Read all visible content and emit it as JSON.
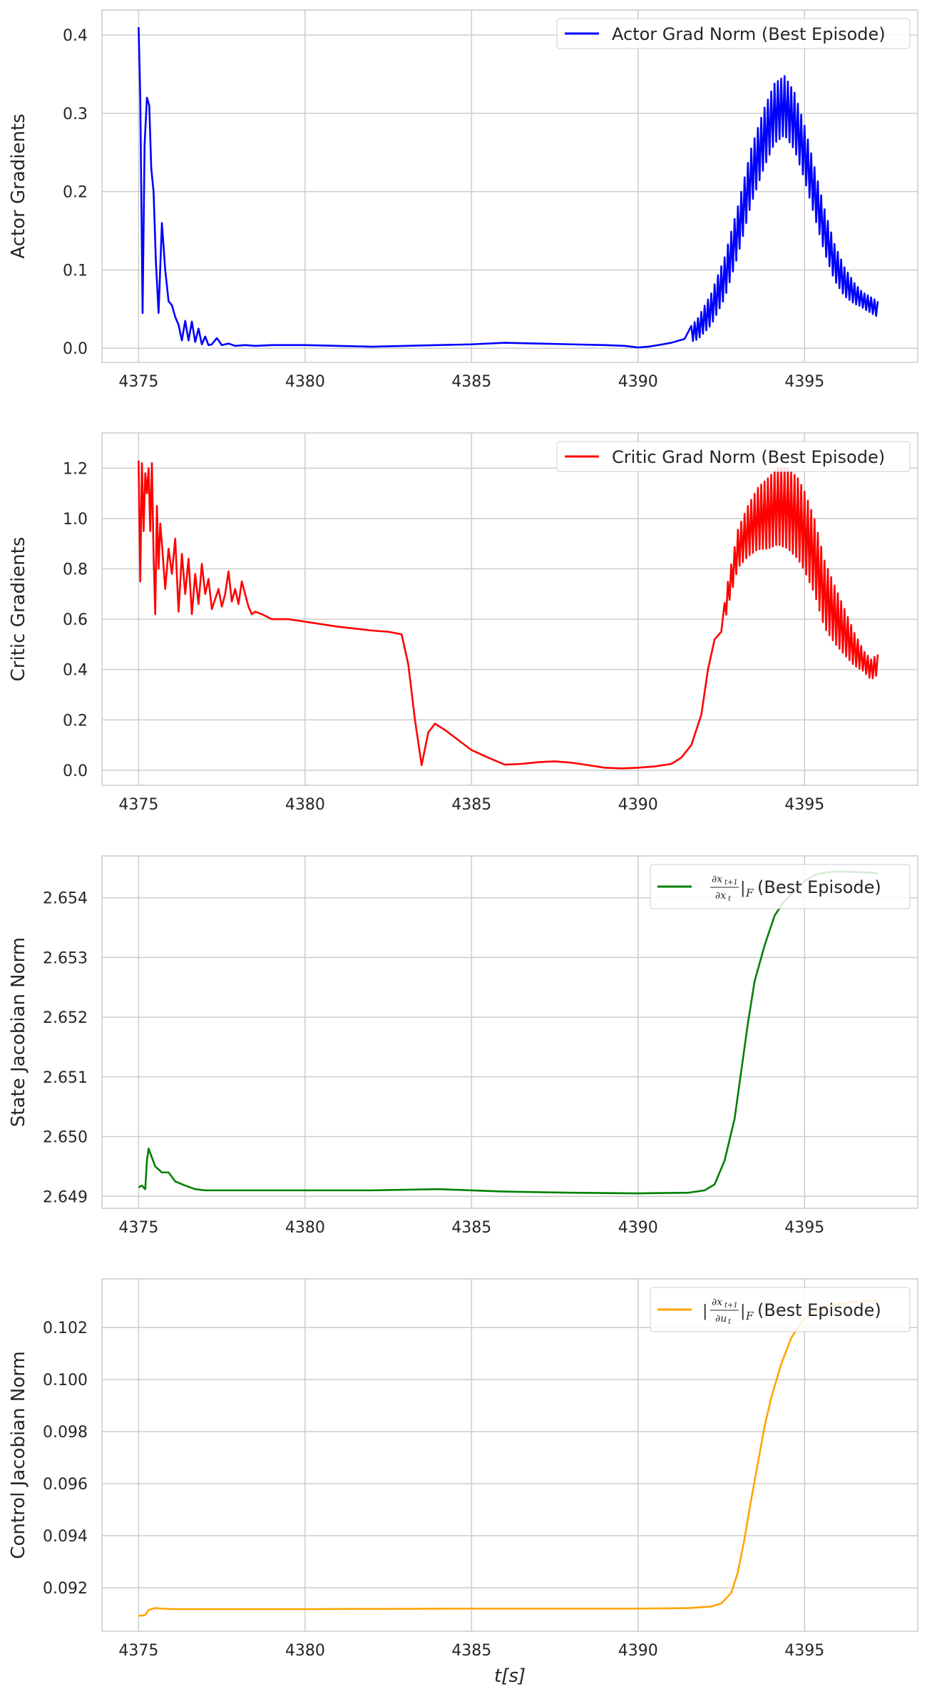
{
  "chart_data": [
    {
      "type": "line",
      "ylabel": "Actor Gradients",
      "xlabel": "",
      "xlim": [
        4373.9,
        4398.4
      ],
      "ylim": [
        -0.018,
        0.432
      ],
      "xticks": [
        4375,
        4380,
        4385,
        4390,
        4395
      ],
      "xtick_labels": [
        "4375",
        "4380",
        "4385",
        "4390",
        "4395"
      ],
      "yticks": [
        0.0,
        0.1,
        0.2,
        0.3,
        0.4
      ],
      "ytick_labels": [
        "0.0",
        "0.1",
        "0.2",
        "0.3",
        "0.4"
      ],
      "grid": true,
      "legend_position": "top-right",
      "series": [
        {
          "name": "Actor Grad Norm (Best Episode)",
          "color": "#0000ff",
          "x": [
            4375.0,
            4375.05,
            4375.12,
            4375.18,
            4375.25,
            4375.32,
            4375.38,
            4375.45,
            4375.52,
            4375.6,
            4375.7,
            4375.8,
            4375.9,
            4376.0,
            4376.1,
            4376.2,
            4376.3,
            4376.4,
            4376.5,
            4376.6,
            4376.7,
            4376.8,
            4376.9,
            4377.0,
            4377.1,
            4377.2,
            4377.35,
            4377.5,
            4377.7,
            4377.9,
            4378.2,
            4378.5,
            4379.0,
            4380.0,
            4381.0,
            4382.0,
            4383.0,
            4384.0,
            4385.0,
            4386.0,
            4387.0,
            4388.0,
            4389.0,
            4389.6,
            4390.0,
            4390.3,
            4390.6,
            4391.0,
            4391.4,
            4391.8,
            4392.2,
            4392.6,
            4393.0,
            4393.4,
            4393.8,
            4394.1,
            4394.4,
            4394.7,
            4395.0,
            4395.3,
            4395.6,
            4395.9,
            4396.2,
            4396.5,
            4396.8,
            4397.2
          ],
          "y": [
            0.41,
            0.32,
            0.045,
            0.26,
            0.32,
            0.31,
            0.23,
            0.2,
            0.11,
            0.045,
            0.16,
            0.1,
            0.06,
            0.055,
            0.04,
            0.03,
            0.01,
            0.035,
            0.01,
            0.034,
            0.008,
            0.025,
            0.005,
            0.015,
            0.004,
            0.005,
            0.013,
            0.004,
            0.006,
            0.003,
            0.004,
            0.003,
            0.004,
            0.004,
            0.003,
            0.002,
            0.003,
            0.004,
            0.005,
            0.007,
            0.006,
            0.005,
            0.004,
            0.003,
            0.001,
            0.002,
            0.004,
            0.007,
            0.012,
            0.025,
            0.05,
            0.09,
            0.15,
            0.22,
            0.27,
            0.3,
            0.31,
            0.29,
            0.25,
            0.2,
            0.15,
            0.11,
            0.085,
            0.07,
            0.06,
            0.05
          ],
          "oscillation": {
            "from": 4391.6,
            "to": 4397.2,
            "period": 0.1,
            "amplitude": [
              0.01,
              0.038
            ]
          }
        }
      ]
    },
    {
      "type": "line",
      "ylabel": "Critic Gradients",
      "xlabel": "",
      "xlim": [
        4373.9,
        4398.4
      ],
      "ylim": [
        -0.06,
        1.34
      ],
      "xticks": [
        4375,
        4380,
        4385,
        4390,
        4395
      ],
      "xtick_labels": [
        "4375",
        "4380",
        "4385",
        "4390",
        "4395"
      ],
      "yticks": [
        0.0,
        0.2,
        0.4,
        0.6,
        0.8,
        1.0,
        1.2
      ],
      "ytick_labels": [
        "0.0",
        "0.2",
        "0.4",
        "0.6",
        "0.8",
        "1.0",
        "1.2"
      ],
      "grid": true,
      "legend_position": "top-right",
      "series": [
        {
          "name": "Critic Grad Norm (Best Episode)",
          "color": "#ff0000",
          "x": [
            4375.0,
            4375.05,
            4375.1,
            4375.15,
            4375.2,
            4375.25,
            4375.3,
            4375.35,
            4375.4,
            4375.45,
            4375.5,
            4375.55,
            4375.6,
            4375.65,
            4375.7,
            4375.8,
            4375.9,
            4376.0,
            4376.1,
            4376.2,
            4376.3,
            4376.4,
            4376.5,
            4376.6,
            4376.7,
            4376.8,
            4376.9,
            4377.0,
            4377.1,
            4377.2,
            4377.3,
            4377.4,
            4377.5,
            4377.6,
            4377.7,
            4377.8,
            4377.9,
            4378.0,
            4378.1,
            4378.2,
            4378.3,
            4378.4,
            4378.5,
            4378.7,
            4379.0,
            4379.5,
            4380.0,
            4381.0,
            4382.0,
            4382.5,
            4382.9,
            4383.1,
            4383.3,
            4383.5,
            4383.7,
            4383.9,
            4384.2,
            4384.6,
            4385.0,
            4385.5,
            4386.0,
            4386.5,
            4387.0,
            4387.5,
            4388.0,
            4388.5,
            4389.0,
            4389.5,
            4390.0,
            4390.5,
            4391.0,
            4391.3,
            4391.6,
            4391.9,
            4392.1,
            4392.3,
            4392.5,
            4392.7,
            4393.0,
            4393.3,
            4393.6,
            4393.9,
            4394.2,
            4394.5,
            4394.8,
            4395.0,
            4395.3,
            4395.6,
            4395.9,
            4396.2,
            4396.5,
            4396.8,
            4397.0,
            4397.2
          ],
          "y": [
            1.23,
            0.75,
            1.22,
            0.95,
            1.18,
            1.1,
            1.2,
            0.95,
            1.22,
            0.85,
            0.62,
            1.05,
            0.8,
            0.98,
            0.9,
            0.72,
            0.88,
            0.78,
            0.92,
            0.63,
            0.86,
            0.7,
            0.84,
            0.62,
            0.78,
            0.66,
            0.82,
            0.7,
            0.76,
            0.64,
            0.68,
            0.72,
            0.65,
            0.7,
            0.79,
            0.67,
            0.72,
            0.66,
            0.75,
            0.7,
            0.65,
            0.62,
            0.63,
            0.62,
            0.6,
            0.6,
            0.59,
            0.57,
            0.555,
            0.55,
            0.54,
            0.42,
            0.2,
            0.02,
            0.15,
            0.185,
            0.16,
            0.12,
            0.08,
            0.05,
            0.022,
            0.025,
            0.032,
            0.035,
            0.03,
            0.02,
            0.01,
            0.007,
            0.01,
            0.015,
            0.025,
            0.05,
            0.1,
            0.22,
            0.4,
            0.52,
            0.55,
            0.7,
            0.88,
            0.95,
            1.0,
            1.02,
            1.05,
            1.04,
            1.0,
            0.95,
            0.85,
            0.7,
            0.62,
            0.55,
            0.48,
            0.43,
            0.4,
            0.42
          ],
          "oscillation": {
            "from": 4392.6,
            "to": 4397.2,
            "period": 0.1,
            "amplitude": [
              0.04,
              0.16
            ]
          }
        }
      ]
    },
    {
      "type": "line",
      "ylabel": "State Jacobian Norm",
      "xlabel": "",
      "xlim": [
        4373.9,
        4398.4
      ],
      "ylim": [
        2.6488,
        2.6547
      ],
      "xticks": [
        4375,
        4380,
        4385,
        4390,
        4395
      ],
      "xtick_labels": [
        "4375",
        "4380",
        "4385",
        "4390",
        "4395"
      ],
      "yticks": [
        2.649,
        2.65,
        2.651,
        2.652,
        2.653,
        2.654
      ],
      "ytick_labels": [
        "2.649",
        "2.650",
        "2.651",
        "2.652",
        "2.653",
        "2.654"
      ],
      "grid": true,
      "legend_position": "top-right",
      "series": [
        {
          "name": "|∂x_{t+1}/∂x_t|_F (Best Episode)",
          "color": "#008000",
          "x": [
            4375.0,
            4375.1,
            4375.2,
            4375.25,
            4375.3,
            4375.5,
            4375.7,
            4375.9,
            4376.1,
            4376.4,
            4376.7,
            4377.0,
            4378.0,
            4380.0,
            4382.0,
            4384.0,
            4386.0,
            4388.0,
            4390.0,
            4391.5,
            4392.0,
            4392.3,
            4392.6,
            4392.9,
            4393.1,
            4393.3,
            4393.5,
            4393.8,
            4394.1,
            4394.4,
            4394.7,
            4395.0,
            4395.3,
            4395.6,
            4396.0,
            4396.5,
            4397.0,
            4397.2
          ],
          "y": [
            2.64915,
            2.64918,
            2.64912,
            2.6496,
            2.6498,
            2.6495,
            2.6494,
            2.6494,
            2.64925,
            2.64918,
            2.64912,
            2.6491,
            2.6491,
            2.6491,
            2.6491,
            2.64912,
            2.64908,
            2.64906,
            2.64905,
            2.64906,
            2.6491,
            2.6492,
            2.6496,
            2.6503,
            2.6511,
            2.6519,
            2.6526,
            2.6532,
            2.6537,
            2.65395,
            2.6541,
            2.65428,
            2.65438,
            2.65442,
            2.65444,
            2.65443,
            2.65442,
            2.65441
          ]
        }
      ]
    },
    {
      "type": "line",
      "ylabel": "Control Jacobian Norm",
      "xlabel": "t[s]",
      "xlim": [
        4373.9,
        4398.4
      ],
      "ylim": [
        0.09033,
        0.10387
      ],
      "xticks": [
        4375,
        4380,
        4385,
        4390,
        4395
      ],
      "xtick_labels": [
        "4375",
        "4380",
        "4385",
        "4390",
        "4395"
      ],
      "yticks": [
        0.092,
        0.094,
        0.096,
        0.098,
        0.1,
        0.102
      ],
      "ytick_labels": [
        "0.092",
        "0.094",
        "0.096",
        "0.098",
        "0.100",
        "0.102"
      ],
      "grid": true,
      "legend_position": "top-right",
      "series": [
        {
          "name": "|∂x_{t+1}/∂u_t|_F (Best Episode)",
          "color": "#ffa500",
          "x": [
            4375.0,
            4375.1,
            4375.2,
            4375.3,
            4375.5,
            4375.7,
            4376.0,
            4377.0,
            4380.0,
            4385.0,
            4390.0,
            4391.5,
            4392.2,
            4392.5,
            4392.8,
            4393.0,
            4393.2,
            4393.4,
            4393.6,
            4393.8,
            4394.0,
            4394.3,
            4394.6,
            4394.9,
            4395.2,
            4395.6,
            4396.0,
            4396.5,
            4397.0,
            4397.2
          ],
          "y": [
            0.09093,
            0.09093,
            0.09095,
            0.09115,
            0.09122,
            0.0912,
            0.09118,
            0.09118,
            0.09118,
            0.0912,
            0.0912,
            0.09122,
            0.09128,
            0.0914,
            0.0918,
            0.0926,
            0.0939,
            0.0954,
            0.0968,
            0.0982,
            0.0993,
            0.1006,
            0.1016,
            0.1022,
            0.10255,
            0.1028,
            0.1029,
            0.10298,
            0.10302,
            0.10304
          ]
        }
      ]
    }
  ]
}
